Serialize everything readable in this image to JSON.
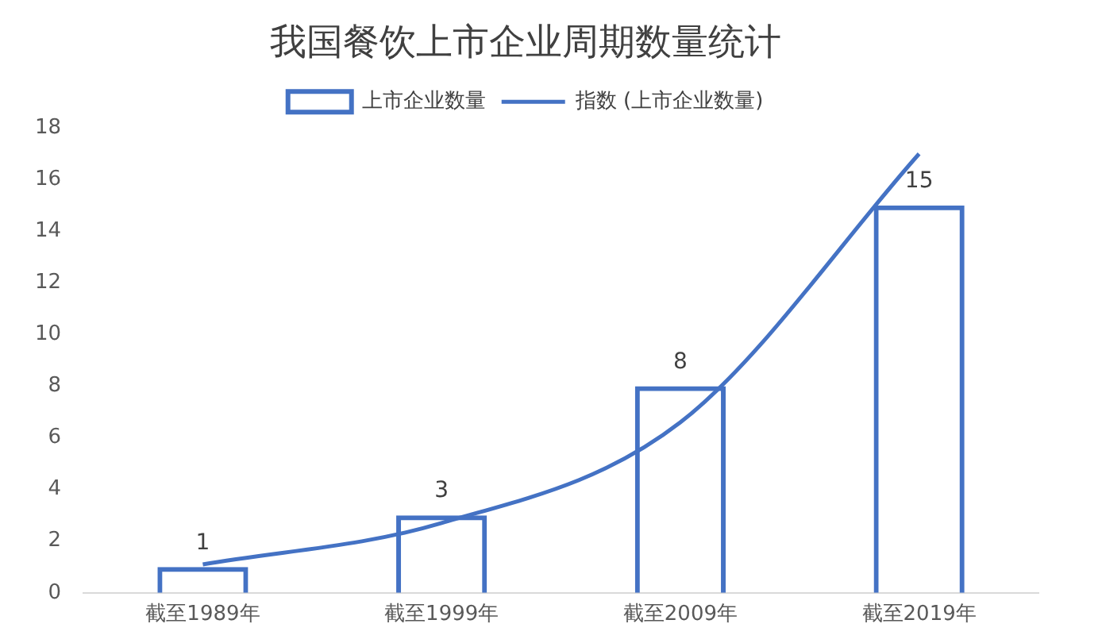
{
  "chart_data": {
    "type": "bar",
    "title": "我国餐饮上市企业周期数量统计",
    "categories": [
      "截至1989年",
      "截至1999年",
      "截至2009年",
      "截至2019年"
    ],
    "series": [
      {
        "name": "上市企业数量",
        "color": "#4472c4",
        "values": [
          1,
          3,
          8,
          15
        ],
        "data_labels": true
      },
      {
        "name": "指数 (上市企业数量)",
        "type": "line",
        "color": "#4472c4",
        "values": [
          1.1,
          2.7,
          6.6,
          17
        ],
        "marker": "none"
      }
    ],
    "ylim": [
      0,
      18
    ],
    "yticks": [
      0,
      2,
      4,
      6,
      8,
      10,
      12,
      14,
      16,
      18
    ],
    "grid": false,
    "legend": "top"
  }
}
